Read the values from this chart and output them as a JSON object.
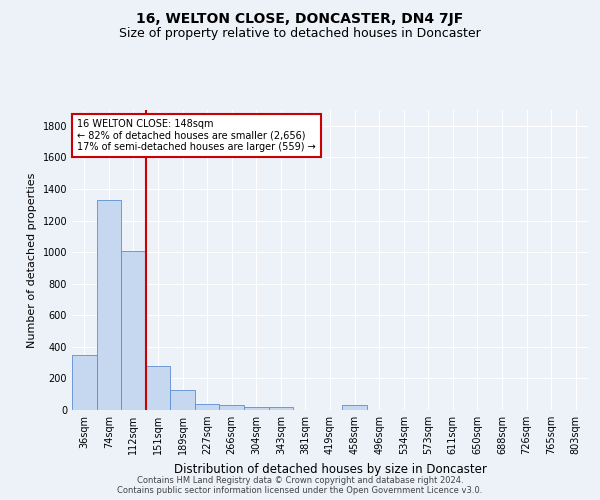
{
  "title": "16, WELTON CLOSE, DONCASTER, DN4 7JF",
  "subtitle": "Size of property relative to detached houses in Doncaster",
  "xlabel": "Distribution of detached houses by size in Doncaster",
  "ylabel": "Number of detached properties",
  "categories": [
    "36sqm",
    "74sqm",
    "112sqm",
    "151sqm",
    "189sqm",
    "227sqm",
    "266sqm",
    "304sqm",
    "343sqm",
    "381sqm",
    "419sqm",
    "458sqm",
    "496sqm",
    "534sqm",
    "573sqm",
    "611sqm",
    "650sqm",
    "688sqm",
    "726sqm",
    "765sqm",
    "803sqm"
  ],
  "bar_heights": [
    350,
    1330,
    1005,
    278,
    125,
    38,
    30,
    22,
    17,
    0,
    0,
    30,
    0,
    0,
    0,
    0,
    0,
    0,
    0,
    0,
    0
  ],
  "bar_color": "#c5d8f0",
  "bar_edge_color": "#5b8dd4",
  "annotation_text": "16 WELTON CLOSE: 148sqm\n← 82% of detached houses are smaller (2,656)\n17% of semi-detached houses are larger (559) →",
  "annotation_box_color": "#ffffff",
  "annotation_box_edge": "#cc0000",
  "vline_color": "#cc0000",
  "ylim": [
    0,
    1900
  ],
  "yticks": [
    0,
    200,
    400,
    600,
    800,
    1000,
    1200,
    1400,
    1600,
    1800
  ],
  "footer_line1": "Contains HM Land Registry data © Crown copyright and database right 2024.",
  "footer_line2": "Contains public sector information licensed under the Open Government Licence v3.0.",
  "background_color": "#edf1f8",
  "plot_bg_color": "#edf1f8",
  "grid_color": "#ffffff",
  "title_fontsize": 10,
  "subtitle_fontsize": 9,
  "tick_fontsize": 7,
  "label_fontsize": 8.5,
  "footer_fontsize": 6,
  "ylabel_fontsize": 8
}
